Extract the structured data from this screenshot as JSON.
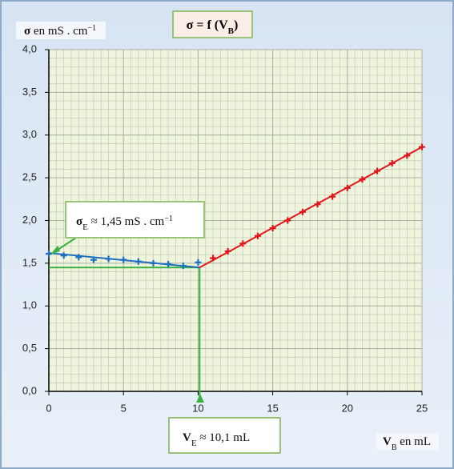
{
  "chart_data": {
    "type": "scatter",
    "title": {
      "main": "σ = f (V",
      "sub": "B",
      "end": ")"
    },
    "y_label": {
      "symbol": "σ",
      "text": " en mS . cm",
      "sup": "−1"
    },
    "x_label": {
      "symbol": "V",
      "sub": "B",
      "text": " en mL"
    },
    "xlim": [
      0,
      25
    ],
    "ylim": [
      0,
      4
    ],
    "xticks": [
      0,
      5,
      10,
      15,
      20,
      25
    ],
    "yticks": [
      {
        "value": 0,
        "label": "0,0"
      },
      {
        "value": 0.5,
        "label": "0,5"
      },
      {
        "value": 1,
        "label": "1,0"
      },
      {
        "value": 1.5,
        "label": "1,5"
      },
      {
        "value": 2,
        "label": "2,0"
      },
      {
        "value": 2.5,
        "label": "2,5"
      },
      {
        "value": 3,
        "label": "3,0"
      },
      {
        "value": 3.5,
        "label": "3,5"
      },
      {
        "value": 4,
        "label": "4,0"
      }
    ],
    "grid": true,
    "minor_grid": {
      "x_step": 0.5,
      "y_step": 0.1
    },
    "series": [
      {
        "color": "#1f6fc0",
        "x": [
          0,
          1,
          2,
          3,
          4,
          5,
          6,
          7,
          8,
          9,
          10
        ],
        "values": [
          1.61,
          1.59,
          1.57,
          1.54,
          1.55,
          1.54,
          1.52,
          1.5,
          1.49,
          1.47,
          1.51
        ]
      },
      {
        "color": "#e3161b",
        "x": [
          11,
          12,
          13,
          14,
          15,
          16,
          17,
          18,
          19,
          20,
          21,
          22,
          23,
          24,
          25
        ],
        "values": [
          1.56,
          1.64,
          1.73,
          1.82,
          1.91,
          2.0,
          2.1,
          2.19,
          2.28,
          2.38,
          2.48,
          2.58,
          2.67,
          2.76,
          2.86
        ]
      }
    ],
    "fit_lines": [
      {
        "color": "#1f6fc0",
        "x": [
          0,
          10.1
        ],
        "values": [
          1.62,
          1.45
        ]
      },
      {
        "color": "#e3161b",
        "x": [
          10.1,
          25
        ],
        "values": [
          1.45,
          2.86
        ]
      }
    ],
    "equivalence": {
      "x": 10.1,
      "y": 1.45,
      "color": "#3cb043"
    },
    "annotations": {
      "sigma_e": {
        "symbol": "σ",
        "sub": "E",
        "text": " ≈ 1,45 mS . cm",
        "sup": "−1"
      },
      "v_e": {
        "symbol": "V",
        "sub": "E",
        "text": " ≈ 10,1 mL"
      }
    }
  }
}
